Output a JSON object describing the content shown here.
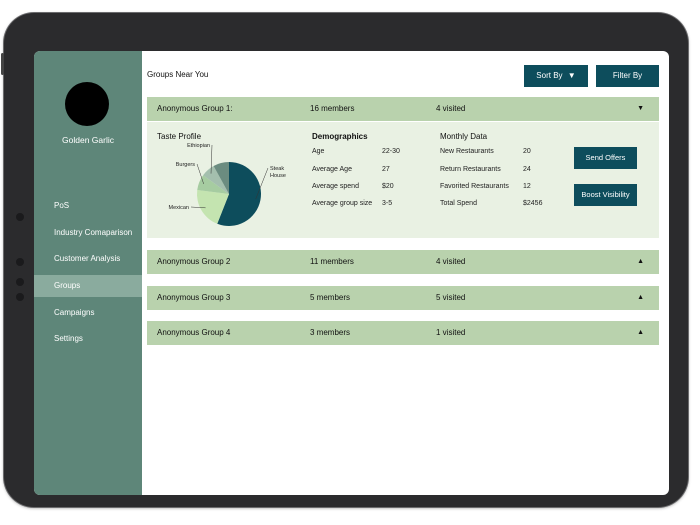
{
  "sidebar": {
    "restaurant_name": "Golden Garlic",
    "items": [
      {
        "label": "PoS",
        "active": false
      },
      {
        "label": "Industry Comaparison",
        "active": false
      },
      {
        "label": "Customer Analysis",
        "active": false
      },
      {
        "label": "Groups",
        "active": true
      },
      {
        "label": "Campaigns",
        "active": false
      },
      {
        "label": "Settings",
        "active": false
      }
    ]
  },
  "header": {
    "title": "Groups Near You",
    "sort_label": "Sort By",
    "filter_label": "Filter By"
  },
  "groups": [
    {
      "name": "Anonymous Group 1:",
      "members": "16 members",
      "visited": "4 visited",
      "expanded": true
    },
    {
      "name": "Anonymous Group 2",
      "members": "11 members",
      "visited": "4 visited",
      "expanded": false
    },
    {
      "name": "Anonymous Group 3",
      "members": "5 members",
      "visited": "5 visited",
      "expanded": false
    },
    {
      "name": "Anonymous Group 4",
      "members": "3 members",
      "visited": "1 visited",
      "expanded": false
    }
  ],
  "details": {
    "taste_title": "Taste Profile",
    "taste_slices": [
      {
        "label": "Steak House",
        "value": 56,
        "color": "#0d4d5c"
      },
      {
        "label": "Mexican",
        "value": 21,
        "color": "#c4e4b0"
      },
      {
        "label": "Burgers",
        "value": 8,
        "color": "#a6cca1"
      },
      {
        "label": "Ethiopian",
        "value": 7,
        "color": "#a4bfae"
      },
      {
        "label": "",
        "value": 8,
        "color": "#6b8c80"
      }
    ],
    "demographics_title": "Demographics",
    "demographics": [
      {
        "label": "Age",
        "value": "22-30"
      },
      {
        "label": "Average Age",
        "value": "27"
      },
      {
        "label": "Average spend",
        "value": "$20"
      },
      {
        "label": "Average group size",
        "value": "3-5"
      }
    ],
    "monthly_title": "Monthly Data",
    "monthly": [
      {
        "label": "New Restaurants",
        "value": "20"
      },
      {
        "label": "Return Restaurants",
        "value": "24"
      },
      {
        "label": "Favorited Restaurants",
        "value": "12"
      },
      {
        "label": "Total Spend",
        "value": "$2456"
      }
    ],
    "send_offers_label": "Send Offers",
    "boost_visibility_label": "Boost Visibility"
  },
  "colors": {
    "sidebar": "#5e8679",
    "sidebar_active": "#8aab9e",
    "group_bar": "#b9d2ad",
    "detail_bg": "#e9f1e3",
    "button": "#0d4d5c"
  },
  "icons": {
    "sort": "caret-down-icon",
    "collapse": "caret-down-icon",
    "expand": "caret-up-icon"
  }
}
